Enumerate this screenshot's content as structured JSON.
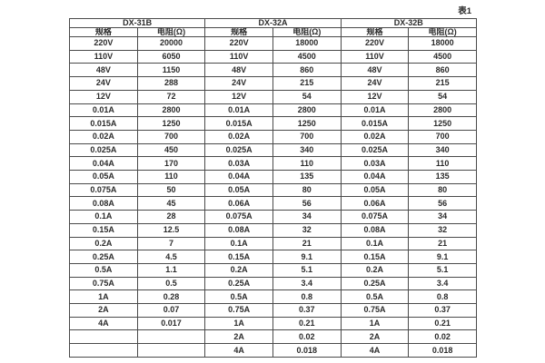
{
  "caption": "表1",
  "colors": {
    "background": "#ffffff",
    "border": "#4a4a4a",
    "text": "#2b2b2b"
  },
  "table": {
    "groups": [
      {
        "name": "DX-31B",
        "columns": [
          "规格",
          "电阻(Ω)"
        ],
        "rows": [
          [
            "220V",
            "20000"
          ],
          [
            "110V",
            "6050"
          ],
          [
            "48V",
            "1150"
          ],
          [
            "24V",
            "288"
          ],
          [
            "12V",
            "72"
          ],
          [
            "0.01A",
            "2800"
          ],
          [
            "0.015A",
            "1250"
          ],
          [
            "0.02A",
            "700"
          ],
          [
            "0.025A",
            "450"
          ],
          [
            "0.04A",
            "170"
          ],
          [
            "0.05A",
            "110"
          ],
          [
            "0.075A",
            "50"
          ],
          [
            "0.08A",
            "45"
          ],
          [
            "0.1A",
            "28"
          ],
          [
            "0.15A",
            "12.5"
          ],
          [
            "0.2A",
            "7"
          ],
          [
            "0.25A",
            "4.5"
          ],
          [
            "0.5A",
            "1.1"
          ],
          [
            "0.75A",
            "0.5"
          ],
          [
            "1A",
            "0.28"
          ],
          [
            "2A",
            "0.07"
          ],
          [
            "4A",
            "0.017"
          ],
          [
            "",
            ""
          ],
          [
            "",
            ""
          ]
        ]
      },
      {
        "name": "DX-32A",
        "columns": [
          "规格",
          "电阻(Ω)"
        ],
        "rows": [
          [
            "220V",
            "18000"
          ],
          [
            "110V",
            "4500"
          ],
          [
            "48V",
            "860"
          ],
          [
            "24V",
            "215"
          ],
          [
            "12V",
            "54"
          ],
          [
            "0.01A",
            "2800"
          ],
          [
            "0.015A",
            "1250"
          ],
          [
            "0.02A",
            "700"
          ],
          [
            "0.025A",
            "340"
          ],
          [
            "0.03A",
            "110"
          ],
          [
            "0.04A",
            "135"
          ],
          [
            "0.05A",
            "80"
          ],
          [
            "0.06A",
            "56"
          ],
          [
            "0.075A",
            "34"
          ],
          [
            "0.08A",
            "32"
          ],
          [
            "0.1A",
            "21"
          ],
          [
            "0.15A",
            "9.1"
          ],
          [
            "0.2A",
            "5.1"
          ],
          [
            "0.25A",
            "3.4"
          ],
          [
            "0.5A",
            "0.8"
          ],
          [
            "0.75A",
            "0.37"
          ],
          [
            "1A",
            "0.21"
          ],
          [
            "2A",
            "0.02"
          ],
          [
            "4A",
            "0.018"
          ]
        ]
      },
      {
        "name": "DX-32B",
        "columns": [
          "规格",
          "电阻(Ω)"
        ],
        "rows": [
          [
            "220V",
            "18000"
          ],
          [
            "110V",
            "4500"
          ],
          [
            "48V",
            "860"
          ],
          [
            "24V",
            "215"
          ],
          [
            "12V",
            "54"
          ],
          [
            "0.01A",
            "2800"
          ],
          [
            "0.015A",
            "1250"
          ],
          [
            "0.02A",
            "700"
          ],
          [
            "0.025A",
            "340"
          ],
          [
            "0.03A",
            "110"
          ],
          [
            "0.04A",
            "135"
          ],
          [
            "0.05A",
            "80"
          ],
          [
            "0.06A",
            "56"
          ],
          [
            "0.075A",
            "34"
          ],
          [
            "0.08A",
            "32"
          ],
          [
            "0.1A",
            "21"
          ],
          [
            "0.15A",
            "9.1"
          ],
          [
            "0.2A",
            "5.1"
          ],
          [
            "0.25A",
            "3.4"
          ],
          [
            "0.5A",
            "0.8"
          ],
          [
            "0.75A",
            "0.37"
          ],
          [
            "1A",
            "0.21"
          ],
          [
            "2A",
            "0.02"
          ],
          [
            "4A",
            "0.018"
          ]
        ]
      }
    ]
  }
}
